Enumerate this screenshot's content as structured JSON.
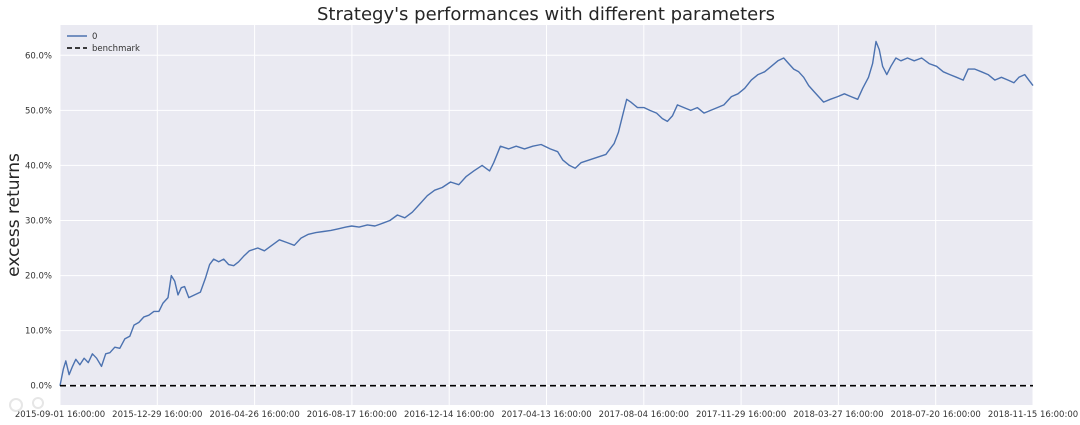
{
  "colors": {
    "plot_background": "#eaeaf2",
    "grid": "#ffffff",
    "strategy_line": "#4c72b0",
    "benchmark_line": "#000000"
  },
  "chart_data": {
    "type": "line",
    "title": "Strategy's performances with different parameters",
    "xlabel": "",
    "ylabel": "excess returns",
    "x_tick_labels": [
      "2015-09-01 16:00:00",
      "2015-12-29 16:00:00",
      "2016-04-26 16:00:00",
      "2016-08-17 16:00:00",
      "2016-12-14 16:00:00",
      "2017-04-13 16:00:00",
      "2017-08-04 16:00:00",
      "2017-11-29 16:00:00",
      "2018-03-27 16:00:00",
      "2018-07-20 16:00:00",
      "2018-11-15 16:00:00"
    ],
    "y_ticks": [
      0,
      10,
      20,
      30,
      40,
      50,
      60
    ],
    "y_tick_labels": [
      "0.0%",
      "10.0%",
      "20.0%",
      "30.0%",
      "40.0%",
      "50.0%",
      "60.0%"
    ],
    "ylim": [
      -3.5,
      65.5
    ],
    "x_range": [
      "2015-09-01",
      "2018-11-15"
    ],
    "grid": true,
    "legend": {
      "position": "top-left",
      "entries": [
        {
          "label": "0",
          "style": "solid"
        },
        {
          "label": "benchmark",
          "style": "dashed"
        }
      ]
    },
    "series": [
      {
        "name": "0",
        "style": "solid",
        "points": [
          [
            "2015-09-01",
            0.0
          ],
          [
            "2015-09-05",
            3.0
          ],
          [
            "2015-09-08",
            4.5
          ],
          [
            "2015-09-12",
            2.0
          ],
          [
            "2015-09-16",
            3.5
          ],
          [
            "2015-09-20",
            4.8
          ],
          [
            "2015-09-25",
            3.8
          ],
          [
            "2015-09-30",
            5.0
          ],
          [
            "2015-10-05",
            4.2
          ],
          [
            "2015-10-10",
            5.8
          ],
          [
            "2015-10-15",
            5.0
          ],
          [
            "2015-10-21",
            3.5
          ],
          [
            "2015-10-26",
            5.8
          ],
          [
            "2015-10-31",
            6.0
          ],
          [
            "2015-11-06",
            7.0
          ],
          [
            "2015-11-12",
            6.8
          ],
          [
            "2015-11-18",
            8.5
          ],
          [
            "2015-11-24",
            9.0
          ],
          [
            "2015-11-29",
            11.0
          ],
          [
            "2015-12-05",
            11.5
          ],
          [
            "2015-12-11",
            12.5
          ],
          [
            "2015-12-17",
            12.8
          ],
          [
            "2015-12-23",
            13.5
          ],
          [
            "2015-12-29",
            13.5
          ],
          [
            "2016-01-03",
            15.0
          ],
          [
            "2016-01-09",
            16.0
          ],
          [
            "2016-01-13",
            20.0
          ],
          [
            "2016-01-17",
            19.0
          ],
          [
            "2016-01-21",
            16.5
          ],
          [
            "2016-01-25",
            17.8
          ],
          [
            "2016-01-29",
            18.0
          ],
          [
            "2016-02-03",
            16.0
          ],
          [
            "2016-02-10",
            16.5
          ],
          [
            "2016-02-17",
            17.0
          ],
          [
            "2016-02-23",
            19.5
          ],
          [
            "2016-02-28",
            22.0
          ],
          [
            "2016-03-04",
            23.0
          ],
          [
            "2016-03-10",
            22.5
          ],
          [
            "2016-03-16",
            23.0
          ],
          [
            "2016-03-22",
            22.0
          ],
          [
            "2016-03-28",
            21.8
          ],
          [
            "2016-04-03",
            22.5
          ],
          [
            "2016-04-09",
            23.5
          ],
          [
            "2016-04-16",
            24.5
          ],
          [
            "2016-04-26",
            25.0
          ],
          [
            "2016-05-04",
            24.5
          ],
          [
            "2016-05-13",
            25.5
          ],
          [
            "2016-05-22",
            26.5
          ],
          [
            "2016-05-31",
            26.0
          ],
          [
            "2016-06-09",
            25.5
          ],
          [
            "2016-06-17",
            26.8
          ],
          [
            "2016-06-26",
            27.5
          ],
          [
            "2016-07-05",
            27.8
          ],
          [
            "2016-07-14",
            28.0
          ],
          [
            "2016-07-23",
            28.2
          ],
          [
            "2016-08-01",
            28.5
          ],
          [
            "2016-08-10",
            28.8
          ],
          [
            "2016-08-17",
            29.0
          ],
          [
            "2016-08-26",
            28.8
          ],
          [
            "2016-09-05",
            29.2
          ],
          [
            "2016-09-14",
            29.0
          ],
          [
            "2016-09-23",
            29.5
          ],
          [
            "2016-10-02",
            30.0
          ],
          [
            "2016-10-11",
            31.0
          ],
          [
            "2016-10-20",
            30.5
          ],
          [
            "2016-10-29",
            31.5
          ],
          [
            "2016-11-07",
            33.0
          ],
          [
            "2016-11-16",
            34.5
          ],
          [
            "2016-11-25",
            35.5
          ],
          [
            "2016-12-04",
            36.0
          ],
          [
            "2016-12-14",
            37.0
          ],
          [
            "2016-12-24",
            36.5
          ],
          [
            "2017-01-02",
            38.0
          ],
          [
            "2017-01-11",
            39.0
          ],
          [
            "2017-01-21",
            40.0
          ],
          [
            "2017-01-30",
            39.0
          ],
          [
            "2017-02-04",
            40.5
          ],
          [
            "2017-02-12",
            43.5
          ],
          [
            "2017-02-22",
            43.0
          ],
          [
            "2017-03-03",
            43.5
          ],
          [
            "2017-03-13",
            43.0
          ],
          [
            "2017-03-23",
            43.5
          ],
          [
            "2017-04-02",
            43.8
          ],
          [
            "2017-04-13",
            43.0
          ],
          [
            "2017-04-22",
            42.5
          ],
          [
            "2017-04-28",
            41.0
          ],
          [
            "2017-05-06",
            40.0
          ],
          [
            "2017-05-13",
            39.5
          ],
          [
            "2017-05-20",
            40.5
          ],
          [
            "2017-05-30",
            41.0
          ],
          [
            "2017-06-09",
            41.5
          ],
          [
            "2017-06-19",
            42.0
          ],
          [
            "2017-06-29",
            44.0
          ],
          [
            "2017-07-04",
            46.0
          ],
          [
            "2017-07-09",
            49.0
          ],
          [
            "2017-07-14",
            52.0
          ],
          [
            "2017-07-19",
            51.5
          ],
          [
            "2017-07-27",
            50.5
          ],
          [
            "2017-08-04",
            50.5
          ],
          [
            "2017-08-11",
            50.0
          ],
          [
            "2017-08-19",
            49.5
          ],
          [
            "2017-08-26",
            48.5
          ],
          [
            "2017-09-01",
            48.0
          ],
          [
            "2017-09-07",
            49.0
          ],
          [
            "2017-09-13",
            51.0
          ],
          [
            "2017-09-21",
            50.5
          ],
          [
            "2017-09-29",
            50.0
          ],
          [
            "2017-10-07",
            50.5
          ],
          [
            "2017-10-15",
            49.5
          ],
          [
            "2017-10-23",
            50.0
          ],
          [
            "2017-10-31",
            50.5
          ],
          [
            "2017-11-08",
            51.0
          ],
          [
            "2017-11-17",
            52.5
          ],
          [
            "2017-11-25",
            53.0
          ],
          [
            "2017-12-03",
            54.0
          ],
          [
            "2017-12-11",
            55.5
          ],
          [
            "2017-12-19",
            56.5
          ],
          [
            "2017-12-27",
            57.0
          ],
          [
            "2018-01-04",
            58.0
          ],
          [
            "2018-01-12",
            59.0
          ],
          [
            "2018-01-19",
            59.5
          ],
          [
            "2018-01-25",
            58.5
          ],
          [
            "2018-01-31",
            57.5
          ],
          [
            "2018-02-06",
            57.0
          ],
          [
            "2018-02-12",
            56.0
          ],
          [
            "2018-02-18",
            54.5
          ],
          [
            "2018-02-24",
            53.5
          ],
          [
            "2018-03-02",
            52.5
          ],
          [
            "2018-03-08",
            51.5
          ],
          [
            "2018-03-16",
            52.0
          ],
          [
            "2018-03-25",
            52.5
          ],
          [
            "2018-04-02",
            53.0
          ],
          [
            "2018-04-10",
            52.5
          ],
          [
            "2018-04-18",
            52.0
          ],
          [
            "2018-04-24",
            54.0
          ],
          [
            "2018-05-01",
            56.0
          ],
          [
            "2018-05-06",
            58.5
          ],
          [
            "2018-05-10",
            62.5
          ],
          [
            "2018-05-14",
            61.0
          ],
          [
            "2018-05-18",
            58.0
          ],
          [
            "2018-05-23",
            56.5
          ],
          [
            "2018-05-28",
            58.0
          ],
          [
            "2018-06-03",
            59.5
          ],
          [
            "2018-06-09",
            59.0
          ],
          [
            "2018-06-17",
            59.5
          ],
          [
            "2018-06-25",
            59.0
          ],
          [
            "2018-07-04",
            59.5
          ],
          [
            "2018-07-13",
            58.5
          ],
          [
            "2018-07-22",
            58.0
          ],
          [
            "2018-07-30",
            57.0
          ],
          [
            "2018-08-07",
            56.5
          ],
          [
            "2018-08-15",
            56.0
          ],
          [
            "2018-08-23",
            55.5
          ],
          [
            "2018-08-29",
            57.5
          ],
          [
            "2018-09-06",
            57.5
          ],
          [
            "2018-09-14",
            57.0
          ],
          [
            "2018-09-22",
            56.5
          ],
          [
            "2018-09-30",
            55.5
          ],
          [
            "2018-10-08",
            56.0
          ],
          [
            "2018-10-16",
            55.5
          ],
          [
            "2018-10-23",
            55.0
          ],
          [
            "2018-10-29",
            56.0
          ],
          [
            "2018-11-05",
            56.5
          ],
          [
            "2018-11-10",
            55.5
          ],
          [
            "2018-11-15",
            54.5
          ]
        ]
      },
      {
        "name": "benchmark",
        "style": "dashed",
        "points": [
          [
            "2015-09-01",
            0.0
          ],
          [
            "2018-11-15",
            0.0
          ]
        ]
      }
    ]
  }
}
